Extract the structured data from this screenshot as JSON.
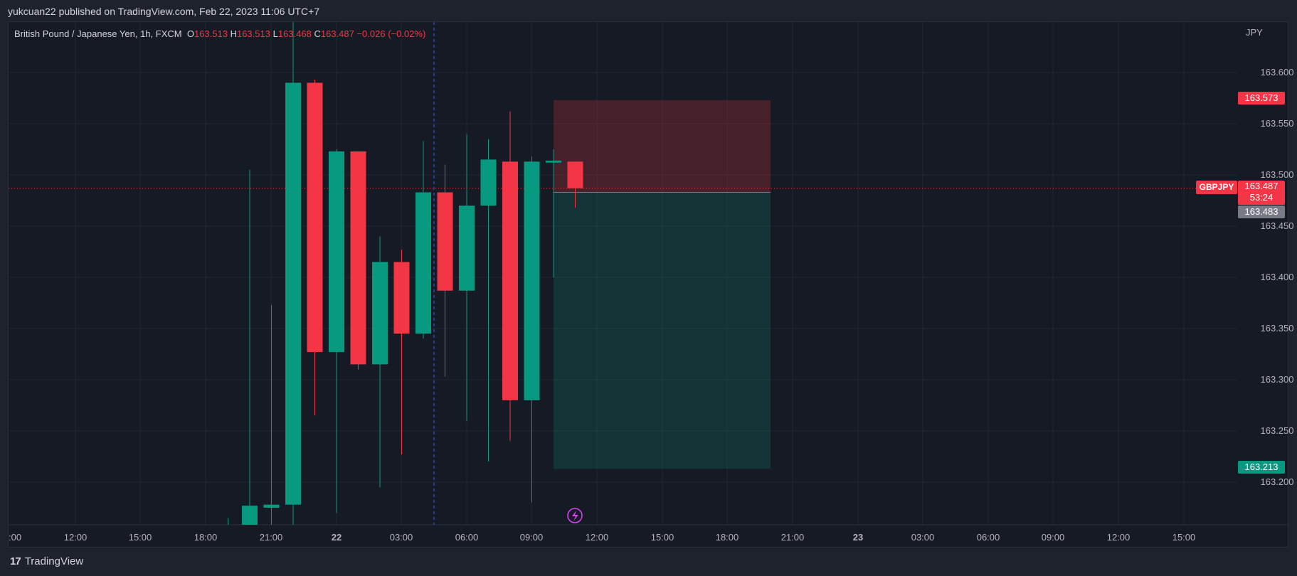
{
  "header": {
    "publisher": "yukcuan22 published on TradingView.com, Feb 22, 2023 11:06 UTC+7"
  },
  "legend": {
    "symbol": "British Pound / Japanese Yen, 1h, FXCM",
    "o_label": "O",
    "o_value": "163.513",
    "h_label": "H",
    "h_value": "163.513",
    "l_label": "L",
    "l_value": "163.468",
    "c_label": "C",
    "c_value": "163.487",
    "change": "−0.026 (−0.02%)"
  },
  "price_scale": {
    "currency": "JPY",
    "symbol_badge": "GBPJPY",
    "last_price": "163.487",
    "countdown": "53:24",
    "stop_price": "163.573",
    "entry_price": "163.483",
    "target_price": "163.213"
  },
  "footer": {
    "brand": "TradingView",
    "logo": "17"
  },
  "colors": {
    "up": "#089981",
    "down": "#f23645",
    "background": "#161a25",
    "grid": "#232632",
    "text": "#b2b5be",
    "accent": "#e040fb"
  },
  "chart_data": {
    "type": "candlestick",
    "symbol": "GBPJPY",
    "interval": "1h",
    "y_axis": {
      "ticks": [
        163.6,
        163.55,
        163.5,
        163.45,
        163.4,
        163.35,
        163.3,
        163.25,
        163.2
      ],
      "tick_labels": [
        "163.600",
        "163.550",
        "163.500",
        "163.450",
        "163.400",
        "163.350",
        "163.300",
        "163.250",
        "163.200"
      ],
      "range": [
        163.158,
        163.65
      ]
    },
    "x_axis": {
      "tick_labels": [
        ":00",
        "12:00",
        "15:00",
        "18:00",
        "21:00",
        "22",
        "03:00",
        "06:00",
        "09:00",
        "12:00",
        "15:00",
        "18:00",
        "21:00",
        "23",
        "03:00",
        "06:00",
        "09:00",
        "12:00",
        "15:00"
      ]
    },
    "candles": [
      {
        "time": "Feb 21 19:00",
        "open": 163.155,
        "high": 163.165,
        "low": 163.15,
        "close": 163.155
      },
      {
        "time": "Feb 21 20:00",
        "open": 163.158,
        "high": 163.505,
        "low": 163.15,
        "close": 163.177
      },
      {
        "time": "Feb 21 21:00",
        "open": 163.175,
        "high": 163.373,
        "low": 163.15,
        "close": 163.178
      },
      {
        "time": "Feb 21 22:00",
        "open": 163.178,
        "high": 163.66,
        "low": 163.15,
        "close": 163.59
      },
      {
        "time": "Feb 21 23:00",
        "open": 163.59,
        "high": 163.593,
        "low": 163.265,
        "close": 163.327
      },
      {
        "time": "Feb 22 00:00",
        "open": 163.327,
        "high": 163.525,
        "low": 163.17,
        "close": 163.523
      },
      {
        "time": "Feb 22 01:00",
        "open": 163.523,
        "high": 163.523,
        "low": 163.31,
        "close": 163.315
      },
      {
        "time": "Feb 22 02:00",
        "open": 163.315,
        "high": 163.44,
        "low": 163.195,
        "close": 163.415
      },
      {
        "time": "Feb 22 03:00",
        "open": 163.415,
        "high": 163.427,
        "low": 163.227,
        "close": 163.345
      },
      {
        "time": "Feb 22 04:00",
        "open": 163.345,
        "high": 163.533,
        "low": 163.34,
        "close": 163.483
      },
      {
        "time": "Feb 22 05:00",
        "open": 163.483,
        "high": 163.51,
        "low": 163.303,
        "close": 163.387
      },
      {
        "time": "Feb 22 06:00",
        "open": 163.387,
        "high": 163.54,
        "low": 163.26,
        "close": 163.47
      },
      {
        "time": "Feb 22 07:00",
        "open": 163.47,
        "high": 163.535,
        "low": 163.22,
        "close": 163.515
      },
      {
        "time": "Feb 22 08:00",
        "open": 163.513,
        "high": 163.562,
        "low": 163.24,
        "close": 163.28
      },
      {
        "time": "Feb 22 09:00",
        "open": 163.28,
        "high": 163.518,
        "low": 163.18,
        "close": 163.513
      },
      {
        "time": "Feb 22 10:00",
        "open": 163.512,
        "high": 163.525,
        "low": 163.4,
        "close": 163.514
      },
      {
        "time": "Feb 22 11:00",
        "open": 163.513,
        "high": 163.513,
        "low": 163.468,
        "close": 163.487
      }
    ],
    "position": {
      "side": "short",
      "entry": 163.483,
      "stop": 163.573,
      "target": 163.213,
      "start": "Feb 22 10:00",
      "end": "Feb 22 20:00"
    },
    "last_price_line": 163.487,
    "vertical_marker": "Feb 22 04:30"
  }
}
